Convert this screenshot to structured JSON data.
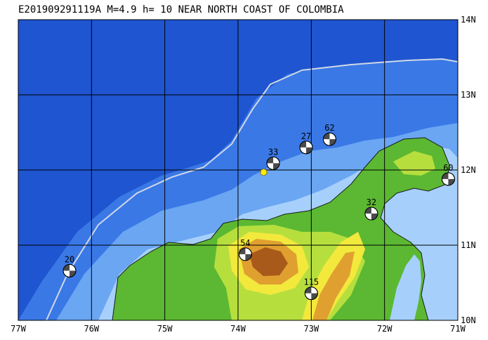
{
  "title": "E201909291119A M=4.9 h= 10 NEAR NORTH COAST OF COLOMBIA",
  "axes": {
    "lon_labels": [
      "77W",
      "76W",
      "75W",
      "74W",
      "73W",
      "72W",
      "71W"
    ],
    "lat_labels": [
      "14N",
      "13N",
      "12N",
      "11N",
      "10N"
    ],
    "lon_range": [
      -77,
      -71
    ],
    "lat_range": [
      10,
      14
    ]
  },
  "epicenter": {
    "lon": -73.65,
    "lat": 11.97,
    "color": "#ffee00"
  },
  "mechanisms": [
    {
      "label": "20",
      "lon": -76.3,
      "lat": 10.66
    },
    {
      "label": "54",
      "lon": -73.9,
      "lat": 10.88
    },
    {
      "label": "33",
      "lon": -73.52,
      "lat": 12.09
    },
    {
      "label": "27",
      "lon": -73.07,
      "lat": 12.3
    },
    {
      "label": "62",
      "lon": -72.75,
      "lat": 12.41
    },
    {
      "label": "32",
      "lon": -72.18,
      "lat": 11.42
    },
    {
      "label": "60",
      "lon": -71.13,
      "lat": 11.88
    },
    {
      "label": "115",
      "lon": -73.0,
      "lat": 10.36
    }
  ],
  "colors": {
    "deep_ocean": "#1f55d0",
    "mid_ocean": "#3a78e6",
    "shelf_ocean": "#6aa6f2",
    "shallow_ocean": "#a6d0fb",
    "lowland": "#5cb832",
    "plain": "#b6df3e",
    "hill": "#f2e93c",
    "mountain": "#e0a030",
    "high_mountain": "#a85a1a",
    "trench_line": "#d0d8e6"
  }
}
